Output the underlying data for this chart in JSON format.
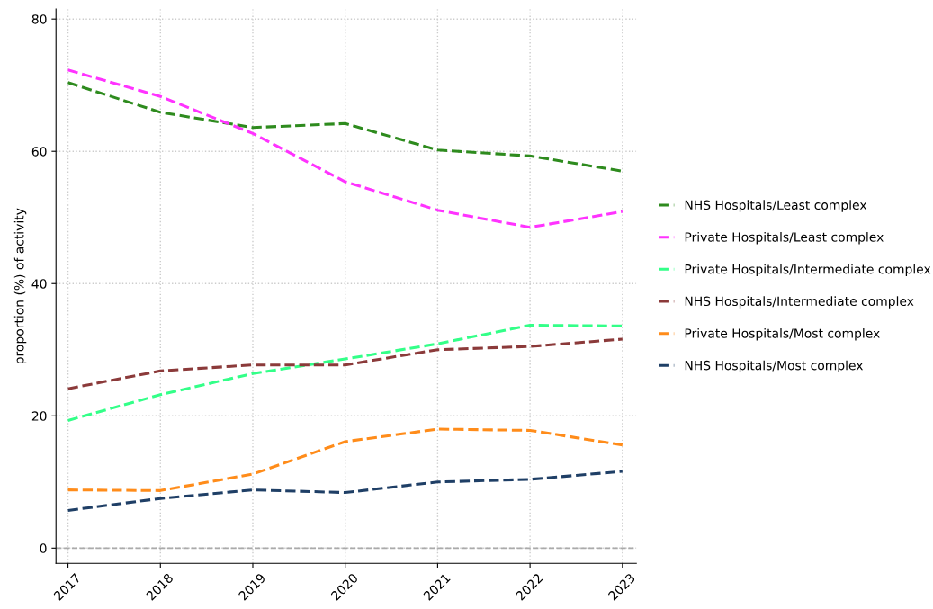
{
  "chart_data": {
    "type": "line",
    "ylabel": "proportion (%) of activity",
    "x": [
      2017,
      2018,
      2019,
      2020,
      2021,
      2022,
      2023
    ],
    "xlim": [
      2016.87,
      2023.15
    ],
    "xticks": [
      2017,
      2018,
      2019,
      2020,
      2021,
      2022,
      2023
    ],
    "ylim": [
      -2.3,
      81.5
    ],
    "yticks": [
      0,
      20,
      40,
      60,
      80
    ],
    "grid": true,
    "legend": "right",
    "line_style": "dashed",
    "marker": "none",
    "ref_lines": [
      {
        "axis": "y",
        "value": 0,
        "label": null,
        "color": "#aaaaaa",
        "line_style": "dashed"
      }
    ],
    "series": [
      {
        "name": "NHS Hospitals/Least complex",
        "color": "#2e8b1e",
        "values": [
          70.4,
          65.9,
          63.6,
          64.2,
          60.2,
          59.3,
          57.0
        ]
      },
      {
        "name": "Private Hospitals/Least complex",
        "color": "#ff33ff",
        "values": [
          72.3,
          68.3,
          62.7,
          55.4,
          51.1,
          48.5,
          50.9
        ]
      },
      {
        "name": "Private Hospitals/Intermediate complex",
        "color": "#33ff88",
        "values": [
          19.3,
          23.2,
          26.4,
          28.6,
          30.9,
          33.7,
          33.6
        ]
      },
      {
        "name": "NHS Hospitals/Intermediate complex",
        "color": "#8b3a3a",
        "values": [
          24.1,
          26.8,
          27.7,
          27.7,
          30.0,
          30.5,
          31.6
        ]
      },
      {
        "name": "Private Hospitals/Most complex",
        "color": "#ff8c1a",
        "values": [
          8.8,
          8.7,
          11.2,
          16.1,
          18.0,
          17.8,
          15.6
        ]
      },
      {
        "name": "NHS Hospitals/Most complex",
        "color": "#1f3f66",
        "values": [
          5.7,
          7.5,
          8.8,
          8.4,
          10.0,
          10.4,
          11.6
        ]
      }
    ]
  }
}
